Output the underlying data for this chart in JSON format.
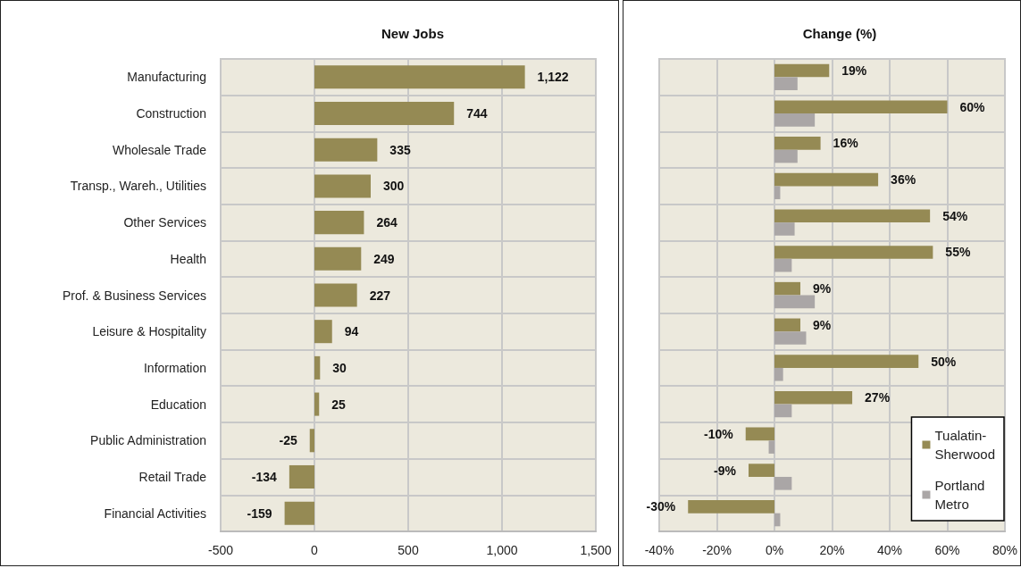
{
  "chart_data": [
    {
      "type": "bar",
      "orientation": "horizontal",
      "title": "New Jobs",
      "categories": [
        "Manufacturing",
        "Construction",
        "Wholesale Trade",
        "Transp., Wareh., Utilities",
        "Other Services",
        "Health",
        "Prof. & Business Services",
        "Leisure & Hospitality",
        "Information",
        "Education",
        "Public Administration",
        "Retail Trade",
        "Financial Activities"
      ],
      "series": [
        {
          "color": "#958a54",
          "values": [
            1122,
            744,
            335,
            300,
            264,
            249,
            227,
            94,
            30,
            25,
            -25,
            -134,
            -159
          ],
          "value_labels": [
            "1,122",
            "744",
            "335",
            "300",
            "264",
            "249",
            "227",
            "94",
            "30",
            "25",
            "-25",
            "-134",
            "-159"
          ]
        }
      ],
      "xlim": [
        -500,
        1500
      ],
      "xticks": [
        -500,
        0,
        500,
        {
          "value": 1000,
          "label": "1,000"
        },
        {
          "value": 1500,
          "label": "1,500"
        }
      ],
      "grid": true,
      "legend": false
    },
    {
      "type": "bar",
      "orientation": "horizontal",
      "title": "Change (%)",
      "categories": [
        null,
        null,
        null,
        null,
        null,
        null,
        null,
        null,
        null,
        null,
        null,
        null,
        null
      ],
      "series": [
        {
          "name": "Tualatin-Sherwood",
          "color": "#958a54",
          "values": [
            19,
            60,
            16,
            36,
            54,
            55,
            9,
            9,
            50,
            27,
            -10,
            -9,
            -30
          ],
          "value_labels": [
            "19%",
            "60%",
            "16%",
            "36%",
            "54%",
            "55%",
            "9%",
            "9%",
            "50%",
            "27%",
            "-10%",
            "-9%",
            "-30%"
          ]
        },
        {
          "name": "Portland Metro",
          "color": "#aaa6a6",
          "values": [
            8,
            14,
            8,
            2,
            7,
            6,
            14,
            11,
            3,
            6,
            -2,
            6,
            2
          ]
        }
      ],
      "xlim": [
        -40,
        80
      ],
      "xticks": [
        {
          "value": -40,
          "label": "-40%"
        },
        {
          "value": -20,
          "label": "-20%"
        },
        {
          "value": 0,
          "label": "0%"
        },
        {
          "value": 20,
          "label": "20%"
        },
        {
          "value": 40,
          "label": "40%"
        },
        {
          "value": 60,
          "label": "60%"
        },
        {
          "value": 80,
          "label": "80%"
        }
      ],
      "grid": true,
      "legend": "bottom right"
    }
  ]
}
